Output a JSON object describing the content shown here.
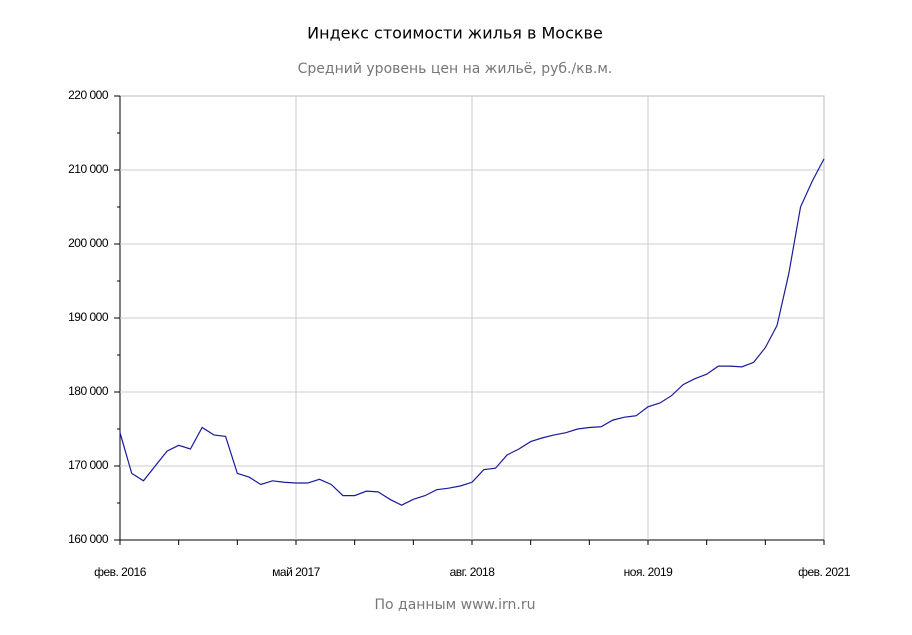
{
  "chart_data": {
    "type": "line",
    "title": "Индекс стоимости жилья в Москве",
    "subtitle": "Средний уровень цен на жильё, руб./кв.м.",
    "source": "По данным www.irn.ru",
    "categories": [
      "фев. 2016",
      null,
      null,
      null,
      null,
      null,
      null,
      null,
      null,
      null,
      null,
      null,
      null,
      null,
      null,
      "май 2017",
      null,
      null,
      null,
      null,
      null,
      null,
      null,
      null,
      null,
      null,
      null,
      null,
      null,
      null,
      "авг. 2018",
      null,
      null,
      null,
      null,
      null,
      null,
      null,
      null,
      null,
      null,
      null,
      null,
      null,
      null,
      "ноя. 2019",
      null,
      null,
      null,
      null,
      null,
      null,
      null,
      null,
      null,
      null,
      null,
      null,
      null,
      null,
      "фев. 2021"
    ],
    "series": [
      {
        "color": "#1a1a9c",
        "values": [
          174500,
          169000,
          168000,
          170000,
          172000,
          172800,
          172300,
          175200,
          174200,
          174000,
          169000,
          168500,
          167500,
          168000,
          167800,
          167700,
          167700,
          168200,
          167500,
          166000,
          166000,
          166600,
          166500,
          165500,
          164700,
          165500,
          166000,
          166800,
          167000,
          167300,
          167800,
          169500,
          169700,
          171500,
          172300,
          173300,
          173800,
          174200,
          174500,
          175000,
          175200,
          175300,
          176200,
          176600,
          176800,
          178000,
          178500,
          179500,
          181000,
          181800,
          182400,
          183500,
          183500,
          183400,
          184000,
          186000,
          189000,
          196000,
          205000,
          208500,
          211500
        ]
      }
    ],
    "ylim": [
      160000,
      220000
    ],
    "yticks": [
      {
        "value": 160000,
        "label": "160 000"
      },
      {
        "value": 170000,
        "label": "170 000"
      },
      {
        "value": 180000,
        "label": "180 000"
      },
      {
        "value": 190000,
        "label": "190 000"
      },
      {
        "value": 200000,
        "label": "200 000"
      },
      {
        "value": 210000,
        "label": "210 000"
      },
      {
        "value": 220000,
        "label": "220 000"
      }
    ],
    "grid": true
  }
}
